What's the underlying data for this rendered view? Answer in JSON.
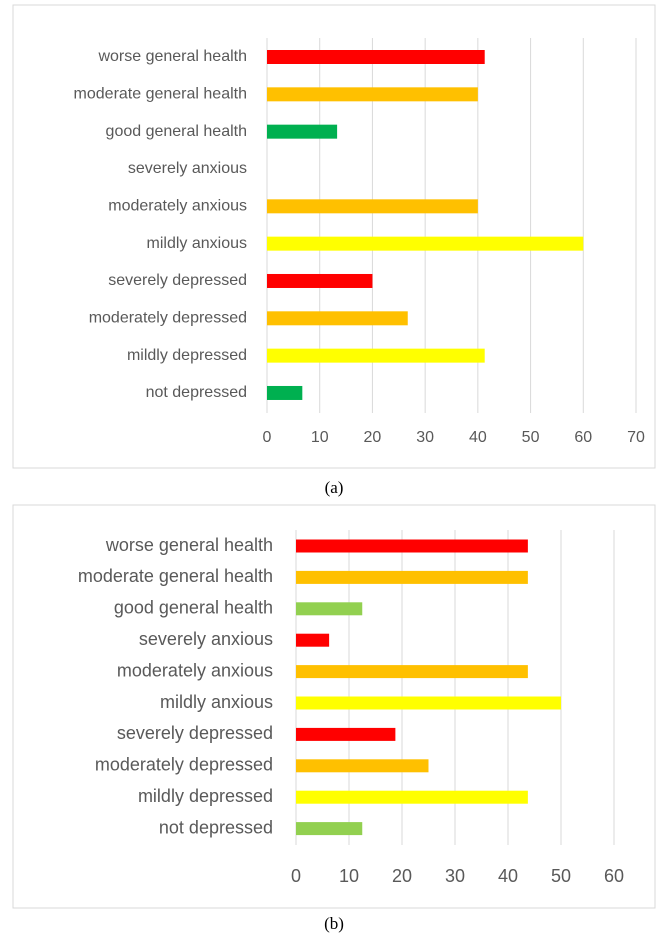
{
  "chart_data": [
    {
      "type": "bar",
      "orientation": "horizontal",
      "caption": "(a)",
      "categories": [
        "worse general health",
        "moderate general health",
        "good general health",
        "severely anxious",
        "moderately anxious",
        "mildly anxious",
        "severely depressed",
        "moderately depressed",
        "mildly depressed",
        "not depressed"
      ],
      "values": [
        41.3,
        40,
        13.3,
        0,
        40,
        60,
        20,
        26.7,
        41.3,
        6.7
      ],
      "colors": [
        "#ff0000",
        "#ffc000",
        "#00b050",
        "#ff0000",
        "#ffc000",
        "#ffff00",
        "#ff0000",
        "#ffc000",
        "#ffff00",
        "#00b050"
      ],
      "xlim": [
        0,
        70
      ],
      "xticks": [
        0,
        10,
        20,
        30,
        40,
        50,
        60,
        70
      ],
      "grid": true
    },
    {
      "type": "bar",
      "orientation": "horizontal",
      "caption": "(b)",
      "categories": [
        "worse general health",
        "moderate general health",
        "good general health",
        "severely anxious",
        "moderately anxious",
        "mildly anxious",
        "severely depressed",
        "moderately depressed",
        "mildly depressed",
        "not depressed"
      ],
      "values": [
        43.75,
        43.75,
        12.5,
        6.25,
        43.75,
        50,
        18.75,
        25,
        43.75,
        12.5
      ],
      "colors": [
        "#ff0000",
        "#ffc000",
        "#92d050",
        "#ff0000",
        "#ffc000",
        "#ffff00",
        "#ff0000",
        "#ffc000",
        "#ffff00",
        "#92d050"
      ],
      "xlim": [
        0,
        60
      ],
      "xticks": [
        0,
        10,
        20,
        30,
        40,
        50,
        60
      ],
      "grid": true
    }
  ]
}
